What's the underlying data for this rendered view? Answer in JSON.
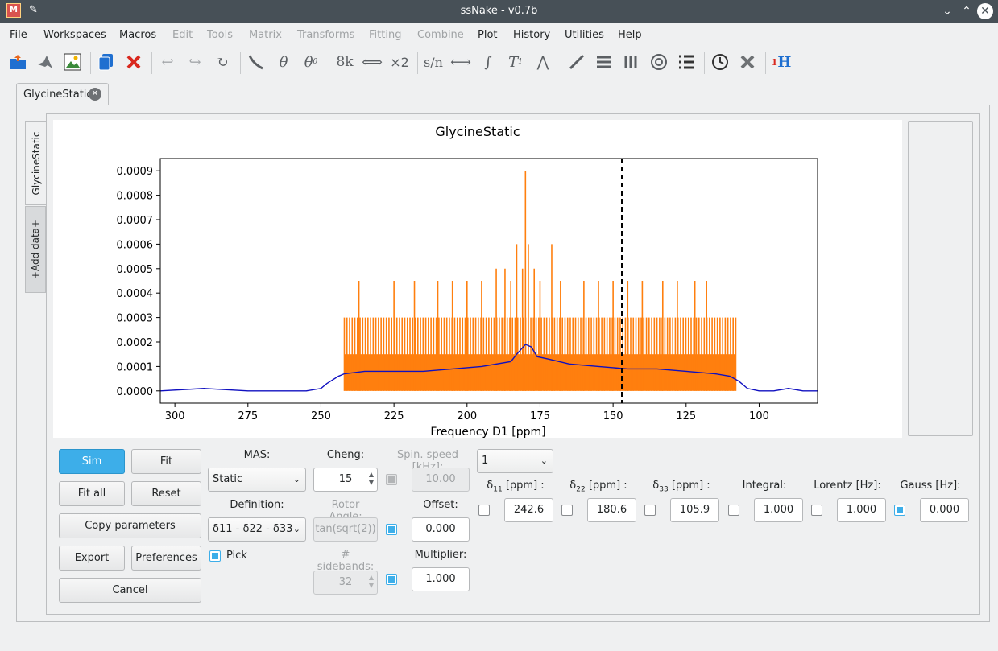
{
  "window": {
    "title": "ssNake - v0.7b"
  },
  "menu": [
    "File",
    "Workspaces",
    "Macros",
    "Edit",
    "Tools",
    "Matrix",
    "Transforms",
    "Fitting",
    "Combine",
    "Plot",
    "History",
    "Utilities",
    "Help"
  ],
  "tab": {
    "label": "GlycineStatic"
  },
  "side_tabs": {
    "active": "GlycineStatic",
    "add": "+Add data+"
  },
  "toolbar": {
    "k8": "8k",
    "x2": "×2",
    "sn": "s/n",
    "theta": "θ",
    "theta0": "θ",
    "theta0_sub": "0",
    "t1": "T",
    "t1_sub": "1",
    "integral": "∫",
    "nmr_sup": "1",
    "nmr_h": "H"
  },
  "chart_data": {
    "type": "line",
    "title": "GlycineStatic",
    "xlabel": "Frequency D1 [ppm]",
    "ylabel": "",
    "xlim": [
      305,
      80
    ],
    "ylim": [
      -5e-05,
      0.00095
    ],
    "xticks": [
      "300",
      "275",
      "250",
      "225",
      "200",
      "175",
      "150",
      "125",
      "100"
    ],
    "yticks": [
      "0.0000",
      "0.0001",
      "0.0002",
      "0.0003",
      "0.0004",
      "0.0005",
      "0.0006",
      "0.0007",
      "0.0008",
      "0.0009"
    ],
    "cursor_ppm": 147,
    "colors": {
      "data": "#ff7f0e",
      "fit": "#1010c0",
      "cursor": "#000000"
    },
    "series": [
      {
        "role": "fit",
        "x": [
          305,
          290,
          275,
          262,
          255,
          250,
          248,
          244,
          242,
          235,
          225,
          215,
          205,
          195,
          185,
          183,
          180,
          178,
          176,
          172,
          165,
          155,
          145,
          135,
          125,
          115,
          110,
          107,
          104,
          100,
          95,
          90,
          85,
          80
        ],
        "values": [
          0.0,
          1e-05,
          0.0,
          0.0,
          0.0,
          1e-05,
          3e-05,
          6e-05,
          7e-05,
          8e-05,
          8e-05,
          8e-05,
          9e-05,
          0.0001,
          0.00012,
          0.00015,
          0.00019,
          0.00018,
          0.00014,
          0.00013,
          0.00011,
          0.0001,
          9e-05,
          9e-05,
          8e-05,
          7e-05,
          6e-05,
          4e-05,
          1e-05,
          0.0,
          0.0,
          1e-05,
          0.0,
          0.0
        ]
      },
      {
        "role": "data_envelope",
        "x": [
          242,
          108
        ],
        "base_level": 0.00015,
        "mid_level": 0.0003,
        "spikes": [
          {
            "x": 237,
            "y": 0.00045
          },
          {
            "x": 225,
            "y": 0.00045
          },
          {
            "x": 218,
            "y": 0.00045
          },
          {
            "x": 210,
            "y": 0.00045
          },
          {
            "x": 205,
            "y": 0.00045
          },
          {
            "x": 200,
            "y": 0.00045
          },
          {
            "x": 195,
            "y": 0.00045
          },
          {
            "x": 190,
            "y": 0.0005
          },
          {
            "x": 187,
            "y": 0.0005
          },
          {
            "x": 185,
            "y": 0.00045
          },
          {
            "x": 183,
            "y": 0.0006
          },
          {
            "x": 181,
            "y": 0.0005
          },
          {
            "x": 180,
            "y": 0.0009
          },
          {
            "x": 179,
            "y": 0.0006
          },
          {
            "x": 177,
            "y": 0.0005
          },
          {
            "x": 175,
            "y": 0.00045
          },
          {
            "x": 171,
            "y": 0.0006
          },
          {
            "x": 168,
            "y": 0.00045
          },
          {
            "x": 160,
            "y": 0.00045
          },
          {
            "x": 155,
            "y": 0.00045
          },
          {
            "x": 150,
            "y": 0.00045
          },
          {
            "x": 145,
            "y": 0.00045
          },
          {
            "x": 140,
            "y": 0.00045
          },
          {
            "x": 133,
            "y": 0.00045
          },
          {
            "x": 128,
            "y": 0.00045
          },
          {
            "x": 122,
            "y": 0.00045
          },
          {
            "x": 118,
            "y": 0.00045
          }
        ]
      }
    ]
  },
  "controls": {
    "sim": "Sim",
    "fit": "Fit",
    "fit_all": "Fit all",
    "reset": "Reset",
    "copy_parameters": "Copy parameters",
    "export": "Export",
    "preferences": "Preferences",
    "cancel": "Cancel",
    "mas_label": "MAS:",
    "mas_value": "Static",
    "cheng_label": "Cheng:",
    "cheng_value": "15",
    "spin_speed_label": "Spin. speed [kHz]:",
    "spin_speed_value": "10.00",
    "site_select_value": "1",
    "definition_label": "Definition:",
    "definition_value": "δ11 - δ22 - δ33",
    "rotor_angle_label": "Rotor Angle:",
    "rotor_angle_value": "tan(sqrt(2))",
    "offset_label": "Offset:",
    "offset_value": "0.000",
    "pick_label": "Pick",
    "sidebands_label": "# sidebands:",
    "sidebands_value": "32",
    "multiplier_label": "Multiplier:",
    "multiplier_value": "1.000",
    "d11_label": "δ",
    "d11_sub": "11",
    "d11_unit": " [ppm] :",
    "d11_value": "242.6",
    "d22_label": "δ",
    "d22_sub": "22",
    "d22_unit": " [ppm] :",
    "d22_value": "180.6",
    "d33_label": "δ",
    "d33_sub": "33",
    "d33_unit": " [ppm] :",
    "d33_value": "105.9",
    "integral_label": "Integral:",
    "integral_value": "1.000",
    "lorentz_label": "Lorentz [Hz]:",
    "lorentz_value": "1.000",
    "gauss_label": "Gauss [Hz]:",
    "gauss_value": "0.000"
  }
}
